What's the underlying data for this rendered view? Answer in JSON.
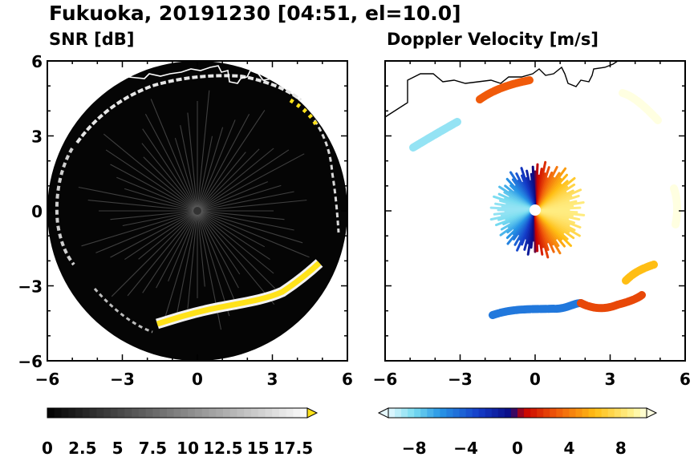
{
  "title": "Fukuoka, 20191230 [04:51, el=10.0]",
  "colors": {
    "background": "#ffffff",
    "radar_disc": "#050505",
    "coastline": "#ffffff",
    "coastline_right": "#000000",
    "highlight_yellow": "#ffe21a"
  },
  "chart_data": [
    {
      "type": "heatmap",
      "title": "SNR [dB]",
      "subtitle": "SNR [dB]",
      "xlim": [
        -6,
        6
      ],
      "ylim": [
        -6,
        6
      ],
      "xticks": [
        "−6",
        "−3",
        "0",
        "3",
        "6"
      ],
      "yticks": [
        "6",
        "3",
        "0",
        "−3",
        "−6"
      ],
      "radar_range": 6,
      "colorbar": {
        "min": 0,
        "max": 18.5,
        "extend": "max",
        "tick_values": [
          0,
          2.5,
          5,
          7.5,
          10,
          12.5,
          15,
          17.5
        ],
        "tick_labels": [
          "0",
          "2.5",
          "5",
          "7.5",
          "10",
          "12.5",
          "15",
          "17.5"
        ]
      },
      "echo_bands": [
        {
          "name": "north coast clutter",
          "level": "high"
        },
        {
          "name": "south arc",
          "level": "max"
        }
      ]
    },
    {
      "type": "heatmap",
      "title": "Doppler Velocity [m/s]",
      "subtitle": "Doppler Velocity [m/s]",
      "xlim": [
        -6,
        6
      ],
      "ylim": [
        -6,
        6
      ],
      "xticks": [
        "−6",
        "−3",
        "0",
        "3",
        "6"
      ],
      "yticks": [
        "6",
        "3",
        "0",
        "−3",
        "−6"
      ],
      "colorbar": {
        "min": -10,
        "max": 10,
        "extend": "both",
        "tick_values": [
          -8,
          -4,
          0,
          4,
          8
        ],
        "tick_labels": [
          "−8",
          "−4",
          "0",
          "4",
          "8"
        ]
      }
    }
  ]
}
